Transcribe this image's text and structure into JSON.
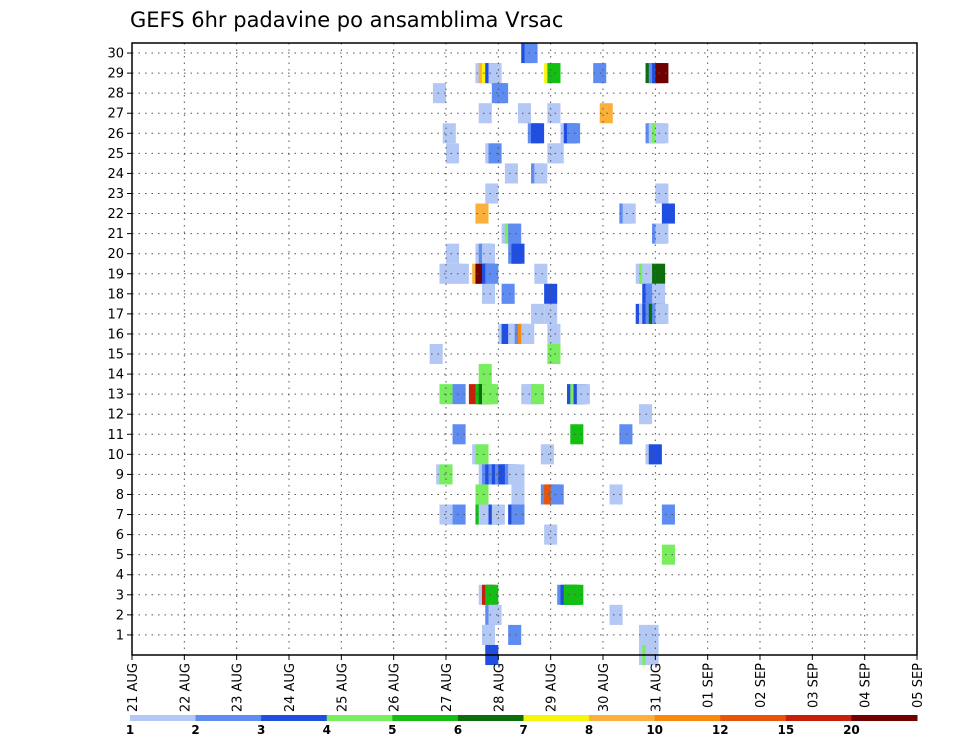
{
  "chart_data": {
    "type": "heatmap",
    "title": "GEFS 6hr padavine po ansamblima Vrsac",
    "xlabel": "",
    "ylabel": "",
    "x_tick_labels": [
      "21 AUG",
      "22 AUG",
      "23 AUG",
      "24 AUG",
      "25 AUG",
      "26 AUG",
      "27 AUG",
      "28 AUG",
      "29 AUG",
      "30 AUG",
      "31 AUG",
      "01 SEP",
      "02 SEP",
      "03 SEP",
      "04 SEP",
      "05 SEP"
    ],
    "y_tick_labels": [
      1,
      2,
      3,
      4,
      5,
      6,
      7,
      8,
      9,
      10,
      11,
      12,
      13,
      14,
      15,
      16,
      17,
      18,
      19,
      20,
      21,
      22,
      23,
      24,
      25,
      26,
      27,
      28,
      29,
      30
    ],
    "xlim_days": [
      0,
      15
    ],
    "ylim": [
      0,
      30.5
    ],
    "step_hours": 6,
    "grid": "dotted",
    "legend": {
      "position": "bottom",
      "thresholds": [
        1,
        2,
        3,
        4,
        5,
        6,
        7,
        8,
        10,
        12,
        15,
        20
      ],
      "colors": [
        "#b4c8f5",
        "#5f8cf0",
        "#1f4ee0",
        "#78ee5f",
        "#12bf12",
        "#0b6e0b",
        "#f7f50a",
        "#fbb03b",
        "#f78a0a",
        "#e8540a",
        "#c81e0a",
        "#6e0000"
      ]
    },
    "cells": [
      {
        "m": 30,
        "t": 30.25,
        "c": 3
      },
      {
        "m": 30,
        "t": 30.5,
        "c": 2
      },
      {
        "m": 29,
        "t": 26.75,
        "c": 1
      },
      {
        "m": 29,
        "t": 27,
        "c": 8
      },
      {
        "m": 29,
        "t": 27.25,
        "c": 7
      },
      {
        "m": 29,
        "t": 27.5,
        "c": 3
      },
      {
        "m": 29,
        "t": 27.75,
        "c": 1
      },
      {
        "m": 29,
        "t": 32,
        "c": 7
      },
      {
        "m": 29,
        "t": 32.25,
        "c": 5
      },
      {
        "m": 29,
        "t": 35.75,
        "c": 2
      },
      {
        "m": 29,
        "t": 39.75,
        "c": 6
      },
      {
        "m": 29,
        "t": 40,
        "c": 2
      },
      {
        "m": 29,
        "t": 40.25,
        "c": 3
      },
      {
        "m": 29,
        "t": 40.5,
        "c": 12
      },
      {
        "m": 28,
        "t": 23.5,
        "c": 1
      },
      {
        "m": 28,
        "t": 28,
        "c": 2
      },
      {
        "m": 28,
        "t": 28.25,
        "c": 2
      },
      {
        "m": 27,
        "t": 27,
        "c": 1
      },
      {
        "m": 27,
        "t": 30,
        "c": 1
      },
      {
        "m": 27,
        "t": 32.25,
        "c": 1
      },
      {
        "m": 27,
        "t": 36.25,
        "c": 8
      },
      {
        "m": 26,
        "t": 24.25,
        "c": 1
      },
      {
        "m": 26,
        "t": 30.75,
        "c": 2
      },
      {
        "m": 26,
        "t": 31,
        "c": 3
      },
      {
        "m": 26,
        "t": 33.25,
        "c": 1
      },
      {
        "m": 26,
        "t": 33.5,
        "c": 3
      },
      {
        "m": 26,
        "t": 33.75,
        "c": 2
      },
      {
        "m": 26,
        "t": 39.75,
        "c": 2
      },
      {
        "m": 26,
        "t": 40,
        "c": 1
      },
      {
        "m": 26,
        "t": 40.25,
        "c": 4
      },
      {
        "m": 26,
        "t": 40.5,
        "c": 1
      },
      {
        "m": 25,
        "t": 24.5,
        "c": 1
      },
      {
        "m": 25,
        "t": 27.5,
        "c": 1
      },
      {
        "m": 25,
        "t": 27.75,
        "c": 2
      },
      {
        "m": 25,
        "t": 32.25,
        "c": 1
      },
      {
        "m": 25,
        "t": 32.5,
        "c": 1
      },
      {
        "m": 24,
        "t": 29,
        "c": 1
      },
      {
        "m": 24,
        "t": 31,
        "c": 2
      },
      {
        "m": 24,
        "t": 31.25,
        "c": 1
      },
      {
        "m": 23,
        "t": 27.5,
        "c": 1
      },
      {
        "m": 23,
        "t": 40.5,
        "c": 1
      },
      {
        "m": 22,
        "t": 26.75,
        "c": 8
      },
      {
        "m": 22,
        "t": 37.75,
        "c": 2
      },
      {
        "m": 22,
        "t": 38,
        "c": 1
      },
      {
        "m": 22,
        "t": 41,
        "c": 3
      },
      {
        "m": 21,
        "t": 28.75,
        "c": 1
      },
      {
        "m": 21,
        "t": 29,
        "c": 4
      },
      {
        "m": 21,
        "t": 29.25,
        "c": 2
      },
      {
        "m": 21,
        "t": 40.25,
        "c": 2
      },
      {
        "m": 21,
        "t": 40.5,
        "c": 1
      },
      {
        "m": 20,
        "t": 24.5,
        "c": 1
      },
      {
        "m": 20,
        "t": 26.75,
        "c": 1
      },
      {
        "m": 20,
        "t": 27,
        "c": 2
      },
      {
        "m": 20,
        "t": 27.25,
        "c": 1
      },
      {
        "m": 20,
        "t": 29.25,
        "c": 2
      },
      {
        "m": 20,
        "t": 29.5,
        "c": 3
      },
      {
        "m": 19,
        "t": 24,
        "c": 1
      },
      {
        "m": 19,
        "t": 24.75,
        "c": 1
      },
      {
        "m": 19,
        "t": 25.25,
        "c": 1
      },
      {
        "m": 19,
        "t": 26.5,
        "c": 8
      },
      {
        "m": 19,
        "t": 26.75,
        "c": 12
      },
      {
        "m": 19,
        "t": 27.25,
        "c": 3
      },
      {
        "m": 19,
        "t": 27.5,
        "c": 2
      },
      {
        "m": 19,
        "t": 31.25,
        "c": 1
      },
      {
        "m": 19,
        "t": 39,
        "c": 1
      },
      {
        "m": 19,
        "t": 39.25,
        "c": 4
      },
      {
        "m": 19,
        "t": 39.5,
        "c": 1
      },
      {
        "m": 19,
        "t": 39.75,
        "c": 1
      },
      {
        "m": 19,
        "t": 40,
        "c": 1
      },
      {
        "m": 19,
        "t": 40.25,
        "c": 6
      },
      {
        "m": 18,
        "t": 27.25,
        "c": 1
      },
      {
        "m": 18,
        "t": 28.75,
        "c": 2
      },
      {
        "m": 18,
        "t": 32,
        "c": 3
      },
      {
        "m": 18,
        "t": 39.5,
        "c": 3
      },
      {
        "m": 18,
        "t": 39.75,
        "c": 2
      },
      {
        "m": 18,
        "t": 40.25,
        "c": 1
      },
      {
        "m": 17,
        "t": 31,
        "c": 1
      },
      {
        "m": 17,
        "t": 32,
        "c": 1
      },
      {
        "m": 17,
        "t": 39,
        "c": 3
      },
      {
        "m": 17,
        "t": 39.25,
        "c": 1
      },
      {
        "m": 17,
        "t": 39.5,
        "c": 3
      },
      {
        "m": 17,
        "t": 39.75,
        "c": 2
      },
      {
        "m": 17,
        "t": 40,
        "c": 6
      },
      {
        "m": 17,
        "t": 40.25,
        "c": 2
      },
      {
        "m": 17,
        "t": 40.5,
        "c": 1
      },
      {
        "m": 16,
        "t": 28.5,
        "c": 1
      },
      {
        "m": 16,
        "t": 28.75,
        "c": 3
      },
      {
        "m": 16,
        "t": 29.25,
        "c": 1
      },
      {
        "m": 16,
        "t": 29.75,
        "c": 2
      },
      {
        "m": 16,
        "t": 30,
        "c": 9
      },
      {
        "m": 16,
        "t": 30.25,
        "c": 1
      },
      {
        "m": 16,
        "t": 32.25,
        "c": 1
      },
      {
        "m": 15,
        "t": 23.25,
        "c": 1
      },
      {
        "m": 15,
        "t": 32.25,
        "c": 4
      },
      {
        "m": 14,
        "t": 27,
        "c": 4
      },
      {
        "m": 13,
        "t": 24,
        "c": 4
      },
      {
        "m": 13,
        "t": 25,
        "c": 2
      },
      {
        "m": 13,
        "t": 26.25,
        "c": 11
      },
      {
        "m": 13,
        "t": 26.75,
        "c": 5
      },
      {
        "m": 13,
        "t": 27,
        "c": 6
      },
      {
        "m": 13,
        "t": 27.25,
        "c": 4
      },
      {
        "m": 13,
        "t": 27.5,
        "c": 4
      },
      {
        "m": 13,
        "t": 30.25,
        "c": 1
      },
      {
        "m": 13,
        "t": 30.5,
        "c": 1
      },
      {
        "m": 13,
        "t": 30.75,
        "c": 1
      },
      {
        "m": 13,
        "t": 31,
        "c": 4
      },
      {
        "m": 13,
        "t": 33.75,
        "c": 3
      },
      {
        "m": 13,
        "t": 34,
        "c": 4
      },
      {
        "m": 13,
        "t": 34.25,
        "c": 3
      },
      {
        "m": 13,
        "t": 34.5,
        "c": 1
      },
      {
        "m": 12,
        "t": 39.25,
        "c": 1
      },
      {
        "m": 11,
        "t": 25,
        "c": 2
      },
      {
        "m": 11,
        "t": 34,
        "c": 5
      },
      {
        "m": 11,
        "t": 37.75,
        "c": 2
      },
      {
        "m": 10,
        "t": 26.5,
        "c": 1
      },
      {
        "m": 10,
        "t": 26.75,
        "c": 4
      },
      {
        "m": 10,
        "t": 31.75,
        "c": 1
      },
      {
        "m": 10,
        "t": 39.75,
        "c": 1
      },
      {
        "m": 10,
        "t": 40,
        "c": 3
      },
      {
        "m": 9,
        "t": 23.75,
        "c": 1
      },
      {
        "m": 9,
        "t": 24,
        "c": 4
      },
      {
        "m": 9,
        "t": 27,
        "c": 1
      },
      {
        "m": 9,
        "t": 27.25,
        "c": 2
      },
      {
        "m": 9,
        "t": 27.5,
        "c": 3
      },
      {
        "m": 9,
        "t": 27.75,
        "c": 2
      },
      {
        "m": 9,
        "t": 28,
        "c": 3
      },
      {
        "m": 9,
        "t": 28.25,
        "c": 2
      },
      {
        "m": 9,
        "t": 28.5,
        "c": 3
      },
      {
        "m": 9,
        "t": 28.75,
        "c": 3
      },
      {
        "m": 9,
        "t": 29,
        "c": 2
      },
      {
        "m": 9,
        "t": 29.25,
        "c": 1
      },
      {
        "m": 9,
        "t": 29.5,
        "c": 1
      },
      {
        "m": 8,
        "t": 26.75,
        "c": 4
      },
      {
        "m": 8,
        "t": 29.5,
        "c": 1
      },
      {
        "m": 8,
        "t": 31.75,
        "c": 2
      },
      {
        "m": 8,
        "t": 32,
        "c": 10
      },
      {
        "m": 8,
        "t": 32.25,
        "c": 10
      },
      {
        "m": 8,
        "t": 32.5,
        "c": 2
      },
      {
        "m": 8,
        "t": 37,
        "c": 1
      },
      {
        "m": 7,
        "t": 24,
        "c": 1
      },
      {
        "m": 7,
        "t": 25,
        "c": 2
      },
      {
        "m": 7,
        "t": 26.75,
        "c": 5
      },
      {
        "m": 7,
        "t": 27,
        "c": 1
      },
      {
        "m": 7,
        "t": 27.5,
        "c": 1
      },
      {
        "m": 7,
        "t": 27.75,
        "c": 3
      },
      {
        "m": 7,
        "t": 28,
        "c": 1
      },
      {
        "m": 7,
        "t": 29.25,
        "c": 3
      },
      {
        "m": 7,
        "t": 29.5,
        "c": 2
      },
      {
        "m": 7,
        "t": 41,
        "c": 2
      },
      {
        "m": 6,
        "t": 32,
        "c": 1
      },
      {
        "m": 5,
        "t": 41,
        "c": 4
      },
      {
        "m": 3,
        "t": 27,
        "c": 1
      },
      {
        "m": 3,
        "t": 27.25,
        "c": 11
      },
      {
        "m": 3,
        "t": 27.5,
        "c": 5
      },
      {
        "m": 3,
        "t": 33,
        "c": 2
      },
      {
        "m": 3,
        "t": 33.25,
        "c": 3
      },
      {
        "m": 3,
        "t": 33.5,
        "c": 5
      },
      {
        "m": 3,
        "t": 33.75,
        "c": 5
      },
      {
        "m": 3,
        "t": 34,
        "c": 5
      },
      {
        "m": 2,
        "t": 27.5,
        "c": 2
      },
      {
        "m": 2,
        "t": 27.75,
        "c": 1
      },
      {
        "m": 2,
        "t": 37,
        "c": 1
      },
      {
        "m": 1,
        "t": 27.25,
        "c": 1
      },
      {
        "m": 1,
        "t": 29.25,
        "c": 2
      },
      {
        "m": 1,
        "t": 39.25,
        "c": 1
      },
      {
        "m": 1,
        "t": 39.75,
        "c": 1
      },
      {
        "m": 0,
        "t": 27.5,
        "c": 3
      },
      {
        "m": 0,
        "t": 39.25,
        "c": 1
      },
      {
        "m": 0,
        "t": 39.5,
        "c": 4
      },
      {
        "m": 0,
        "t": 39.75,
        "c": 1
      }
    ]
  }
}
